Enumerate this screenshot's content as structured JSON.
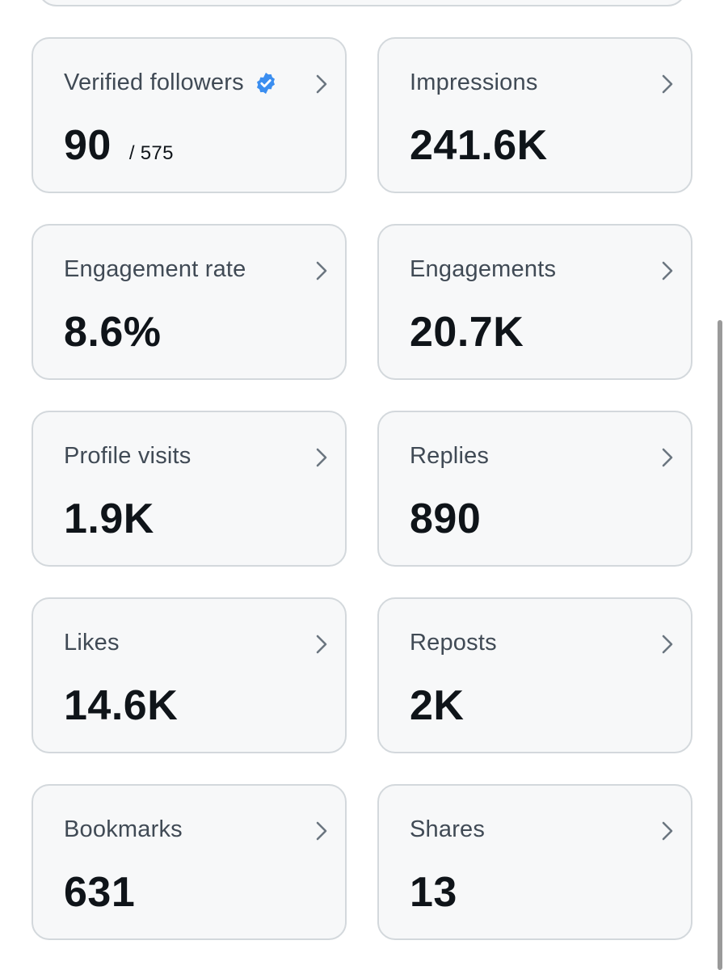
{
  "colors": {
    "verified_badge": "#3b8ef0",
    "card_background": "#f7f8f9",
    "card_border": "#d3d8dc",
    "label_text": "#404a55",
    "value_text": "#0f1419",
    "chevron": "#6b7680"
  },
  "metrics": [
    {
      "label": "Verified followers",
      "value": "90",
      "sub_value": "/ 575",
      "badge_icon": "verified-check-icon",
      "action_icon": "chevron-right-icon"
    },
    {
      "label": "Impressions",
      "value": "241.6K",
      "action_icon": "chevron-right-icon"
    },
    {
      "label": "Engagement rate",
      "value": "8.6%",
      "action_icon": "chevron-right-icon"
    },
    {
      "label": "Engagements",
      "value": "20.7K",
      "action_icon": "chevron-right-icon"
    },
    {
      "label": "Profile visits",
      "value": "1.9K",
      "action_icon": "chevron-right-icon"
    },
    {
      "label": "Replies",
      "value": "890",
      "action_icon": "chevron-right-icon"
    },
    {
      "label": "Likes",
      "value": "14.6K",
      "action_icon": "chevron-right-icon"
    },
    {
      "label": "Reposts",
      "value": "2K",
      "action_icon": "chevron-right-icon"
    },
    {
      "label": "Bookmarks",
      "value": "631",
      "action_icon": "chevron-right-icon"
    },
    {
      "label": "Shares",
      "value": "13",
      "action_icon": "chevron-right-icon"
    }
  ]
}
